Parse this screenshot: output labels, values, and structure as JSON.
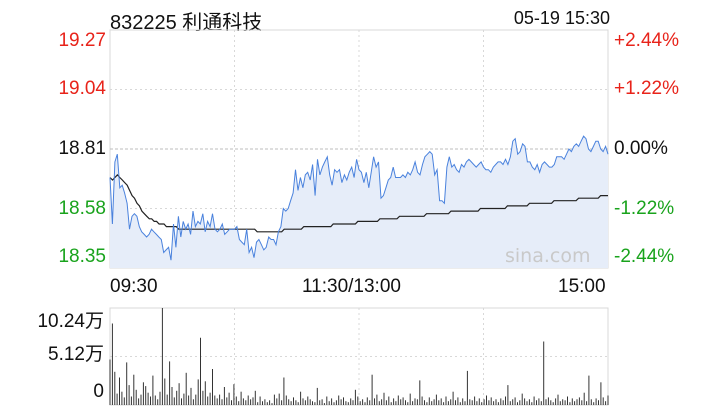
{
  "header": {
    "title": "832225 利通科技",
    "datetime": "05-19 15:30"
  },
  "watermark": "sina.com",
  "colors": {
    "up": "#e8231a",
    "down": "#19a31c",
    "neutral": "#111111",
    "price_line": "#4a82dd",
    "avg_line": "#222222",
    "area_fill": "#e6edf9",
    "volume_bar": "#333333",
    "grid": "#d8d8d8"
  },
  "chart_data": [
    {
      "type": "line",
      "title": "",
      "price_axis": {
        "ticks": [
          "19.27",
          "19.04",
          "18.81",
          "18.58",
          "18.35"
        ],
        "range": [
          18.35,
          19.27
        ],
        "reference": 18.81
      },
      "percent_axis": {
        "ticks": [
          "+2.44%",
          "+1.22%",
          "0.00%",
          "-1.22%",
          "-2.44%"
        ]
      },
      "x_axis": {
        "ticks": [
          "09:30",
          "11:30/13:00",
          "15:00"
        ]
      },
      "grid": true,
      "series": [
        {
          "name": "",
          "style": "price",
          "values": [
            18.7,
            18.52,
            18.76,
            18.79,
            18.66,
            18.67,
            18.64,
            18.6,
            18.5,
            18.55,
            18.56,
            18.55,
            18.51,
            18.49,
            18.48,
            18.47,
            18.48,
            18.5,
            18.49,
            18.48,
            18.47,
            18.46,
            18.41,
            18.42,
            18.43,
            18.38,
            18.52,
            18.43,
            18.55,
            18.47,
            18.53,
            18.5,
            18.52,
            18.48,
            18.57,
            18.51,
            18.53,
            18.52,
            18.56,
            18.49,
            18.53,
            18.51,
            18.56,
            18.5,
            18.49,
            18.5,
            18.52,
            18.48,
            18.49,
            18.5,
            18.5,
            18.5,
            18.51,
            18.46,
            18.45,
            18.44,
            18.5,
            18.41,
            18.43,
            18.39,
            18.45,
            18.46,
            18.44,
            18.42,
            18.43,
            18.47,
            18.46,
            18.46,
            18.44,
            18.49,
            18.51,
            18.58,
            18.57,
            18.58,
            18.61,
            18.64,
            18.73,
            18.65,
            18.7,
            18.66,
            18.71,
            18.72,
            18.69,
            18.75,
            18.63,
            18.77,
            18.71,
            18.74,
            18.76,
            18.78,
            18.71,
            18.67,
            18.73,
            18.72,
            18.73,
            18.68,
            18.71,
            18.69,
            18.72,
            18.74,
            18.7,
            18.77,
            18.73,
            18.72,
            18.68,
            18.72,
            18.66,
            18.72,
            18.78,
            18.74,
            18.76,
            18.62,
            18.63,
            18.66,
            18.69,
            18.7,
            18.74,
            18.7,
            18.7,
            18.7,
            18.71,
            18.7,
            18.72,
            18.71,
            18.73,
            18.76,
            18.72,
            18.71,
            18.75,
            18.78,
            18.79,
            18.8,
            18.79,
            18.71,
            18.73,
            18.61,
            18.61,
            18.6,
            18.74,
            18.78,
            18.74,
            18.75,
            18.73,
            18.72,
            18.75,
            18.74,
            18.76,
            18.77,
            18.76,
            18.75,
            18.74,
            18.75,
            18.76,
            18.74,
            18.73,
            18.73,
            18.72,
            18.74,
            18.75,
            18.76,
            18.76,
            18.75,
            18.77,
            18.75,
            18.78,
            18.84,
            18.85,
            18.79,
            18.8,
            18.83,
            18.82,
            18.76,
            18.76,
            18.74,
            18.73,
            18.75,
            18.72,
            18.75,
            18.76,
            18.75,
            18.74,
            18.74,
            18.75,
            18.78,
            18.78,
            18.78,
            18.77,
            18.79,
            18.81,
            18.8,
            18.82,
            18.83,
            18.82,
            18.84,
            18.86,
            18.85,
            18.81,
            18.8,
            18.82,
            18.84,
            18.84,
            18.81,
            18.8,
            18.82,
            18.79
          ]
        },
        {
          "name": "",
          "style": "average",
          "values": [
            18.7,
            18.69,
            18.7,
            18.71,
            18.7,
            18.69,
            18.68,
            18.67,
            18.65,
            18.63,
            18.62,
            18.6,
            18.59,
            18.57,
            18.56,
            18.55,
            18.54,
            18.54,
            18.53,
            18.53,
            18.52,
            18.52,
            18.52,
            18.51,
            18.51,
            18.51,
            18.51,
            18.51,
            18.5,
            18.5,
            18.5,
            18.5,
            18.5,
            18.5,
            18.5,
            18.5,
            18.5,
            18.5,
            18.5,
            18.5,
            18.5,
            18.5,
            18.5,
            18.5,
            18.5,
            18.5,
            18.5,
            18.5,
            18.5,
            18.5,
            18.5,
            18.5,
            18.5,
            18.5,
            18.5,
            18.5,
            18.5,
            18.5,
            18.5,
            18.5,
            18.49,
            18.49,
            18.49,
            18.49,
            18.49,
            18.49,
            18.49,
            18.49,
            18.49,
            18.49,
            18.49,
            18.5,
            18.5,
            18.5,
            18.5,
            18.5,
            18.5,
            18.5,
            18.5,
            18.51,
            18.51,
            18.51,
            18.51,
            18.51,
            18.51,
            18.51,
            18.51,
            18.51,
            18.51,
            18.51,
            18.51,
            18.52,
            18.52,
            18.52,
            18.52,
            18.52,
            18.52,
            18.52,
            18.52,
            18.52,
            18.52,
            18.53,
            18.53,
            18.53,
            18.53,
            18.53,
            18.53,
            18.53,
            18.53,
            18.53,
            18.54,
            18.54,
            18.54,
            18.54,
            18.54,
            18.54,
            18.54,
            18.54,
            18.55,
            18.55,
            18.55,
            18.55,
            18.55,
            18.55,
            18.55,
            18.55,
            18.55,
            18.55,
            18.55,
            18.56,
            18.56,
            18.56,
            18.56,
            18.56,
            18.56,
            18.56,
            18.56,
            18.56,
            18.56,
            18.57,
            18.57,
            18.57,
            18.57,
            18.57,
            18.57,
            18.57,
            18.57,
            18.57,
            18.57,
            18.57,
            18.57,
            18.58,
            18.58,
            18.58,
            18.58,
            18.58,
            18.58,
            18.58,
            18.58,
            18.58,
            18.58,
            18.58,
            18.59,
            18.59,
            18.59,
            18.59,
            18.59,
            18.59,
            18.59,
            18.59,
            18.59,
            18.6,
            18.6,
            18.6,
            18.6,
            18.6,
            18.6,
            18.6,
            18.6,
            18.6,
            18.6,
            18.61,
            18.61,
            18.61,
            18.61,
            18.61,
            18.61,
            18.61,
            18.61,
            18.61,
            18.61,
            18.62,
            18.62,
            18.62,
            18.62,
            18.62,
            18.62,
            18.62,
            18.62,
            18.62,
            18.63,
            18.63,
            18.63,
            18.63
          ]
        }
      ]
    },
    {
      "type": "bar",
      "title": "",
      "y_axis": {
        "ticks": [
          "10.24万",
          "5.12万",
          "0"
        ],
        "range": [
          0,
          10.24
        ]
      },
      "values": [
        4.8,
        8.6,
        3.5,
        1.2,
        2.9,
        1.4,
        0.8,
        4.5,
        2.1,
        0.9,
        3.2,
        1.6,
        0.7,
        1.1,
        2.4,
        2.0,
        1.3,
        0.9,
        3.1,
        1.0,
        0.6,
        1.4,
        10.24,
        2.8,
        1.1,
        4.6,
        1.9,
        0.8,
        1.5,
        2.3,
        0.7,
        1.2,
        3.4,
        1.0,
        1.8,
        0.6,
        1.1,
        2.7,
        7.1,
        1.5,
        2.5,
        0.9,
        1.3,
        3.8,
        1.0,
        0.7,
        1.1,
        0.6,
        1.9,
        0.8,
        1.3,
        0.5,
        2.2,
        0.9,
        0.4,
        1.4,
        0.7,
        0.5,
        1.0,
        0.6,
        0.8,
        1.5,
        0.3,
        0.9,
        0.4,
        0.6,
        0.3,
        0.5,
        0.2,
        1.1,
        0.7,
        1.2,
        0.5,
        2.9,
        1.0,
        0.6,
        0.4,
        0.8,
        0.5,
        0.3,
        1.4,
        0.7,
        0.5,
        0.9,
        0.6,
        0.4,
        0.3,
        1.8,
        0.5,
        0.6,
        0.2,
        0.9,
        0.4,
        0.7,
        0.3,
        0.5,
        1.0,
        0.6,
        0.8,
        0.4,
        0.3,
        0.7,
        0.5,
        1.6,
        0.9,
        0.4,
        0.6,
        0.3,
        0.8,
        0.5,
        3.2,
        0.7,
        1.1,
        0.4,
        0.6,
        1.3,
        0.5,
        0.9,
        0.3,
        0.7,
        0.4,
        1.0,
        0.6,
        0.8,
        0.5,
        0.3,
        1.2,
        0.4,
        0.7,
        0.6,
        2.6,
        0.9,
        0.5,
        0.3,
        0.8,
        0.4,
        0.6,
        1.1,
        0.5,
        0.7,
        0.3,
        0.9,
        0.4,
        0.6,
        1.4,
        0.5,
        0.8,
        0.3,
        0.7,
        0.4,
        3.6,
        0.6,
        0.5,
        0.9,
        0.4,
        0.7,
        0.3,
        0.6,
        1.0,
        0.5,
        0.8,
        0.4,
        0.6,
        0.3,
        0.7,
        0.5,
        0.9,
        2.1,
        0.4,
        0.6,
        0.8,
        0.3,
        0.5,
        1.2,
        0.7,
        0.4,
        0.6,
        0.3,
        0.9,
        0.5,
        0.7,
        0.4,
        6.7,
        0.6,
        0.8,
        0.5,
        0.3,
        0.7,
        1.1,
        0.4,
        0.6,
        0.5,
        0.9,
        0.3,
        0.7,
        0.4,
        0.6,
        0.8,
        0.5,
        1.3,
        0.4,
        3.1,
        0.6,
        0.3,
        0.7,
        0.5,
        2.4,
        0.8,
        0.4,
        1.0
      ]
    }
  ]
}
